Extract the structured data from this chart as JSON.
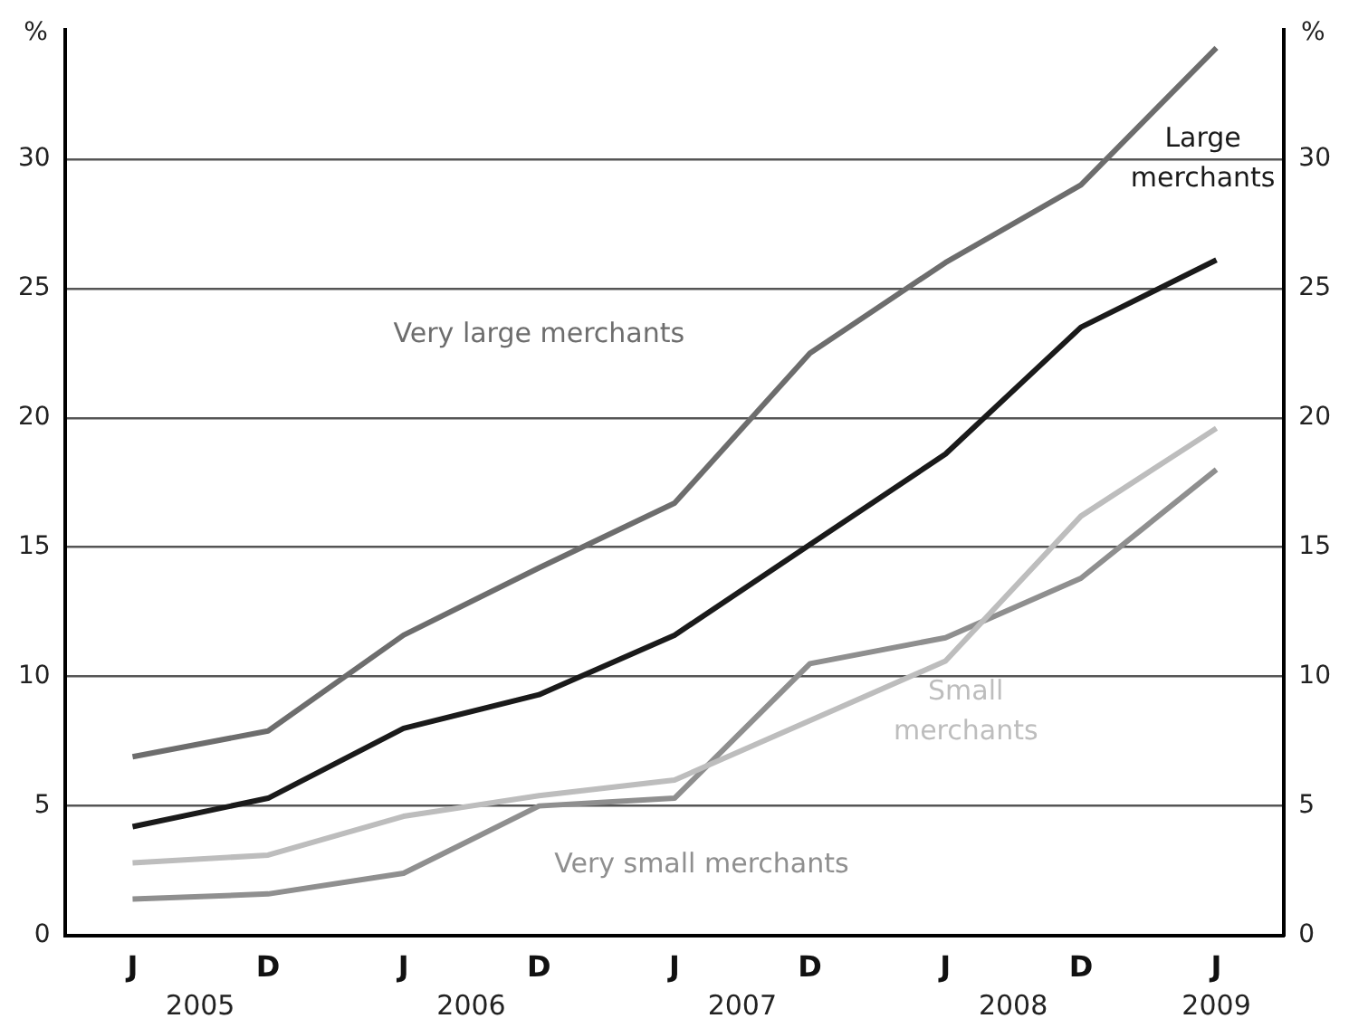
{
  "chart_data": {
    "type": "line",
    "categories": [
      "J",
      "D",
      "J",
      "D",
      "J",
      "D",
      "J",
      "D",
      "J"
    ],
    "series": [
      {
        "name": "Very large merchants",
        "color": "#6d6d6d",
        "values": [
          6.9,
          7.9,
          11.6,
          14.2,
          16.7,
          22.5,
          26.0,
          29.0,
          34.3
        ]
      },
      {
        "name": "Large merchants",
        "color": "#1a1a1a",
        "values": [
          4.2,
          5.3,
          8.0,
          9.3,
          11.6,
          15.1,
          18.6,
          23.5,
          26.1
        ]
      },
      {
        "name": "Small merchants",
        "color": "#bdbdbd",
        "values": [
          2.8,
          3.1,
          4.6,
          5.4,
          6.0,
          8.3,
          10.6,
          16.2,
          19.6
        ]
      },
      {
        "name": "Very small merchants",
        "color": "#8f8f8f",
        "values": [
          1.4,
          1.6,
          2.4,
          5.0,
          5.3,
          10.5,
          11.5,
          13.8,
          18.0
        ]
      }
    ],
    "ylabel": "%",
    "y2label": "%",
    "ylim": [
      0,
      35
    ],
    "yticks": [
      0,
      5,
      10,
      15,
      20,
      25,
      30
    ],
    "y2lim": [
      0,
      35
    ],
    "y2ticks": [
      0,
      5,
      10,
      15,
      20,
      25,
      30
    ],
    "annotations": [
      "2005",
      "2006",
      "2007",
      "2008",
      "2009"
    ],
    "grid": "y",
    "legend": false,
    "marker": "none",
    "line_style": "solid"
  }
}
